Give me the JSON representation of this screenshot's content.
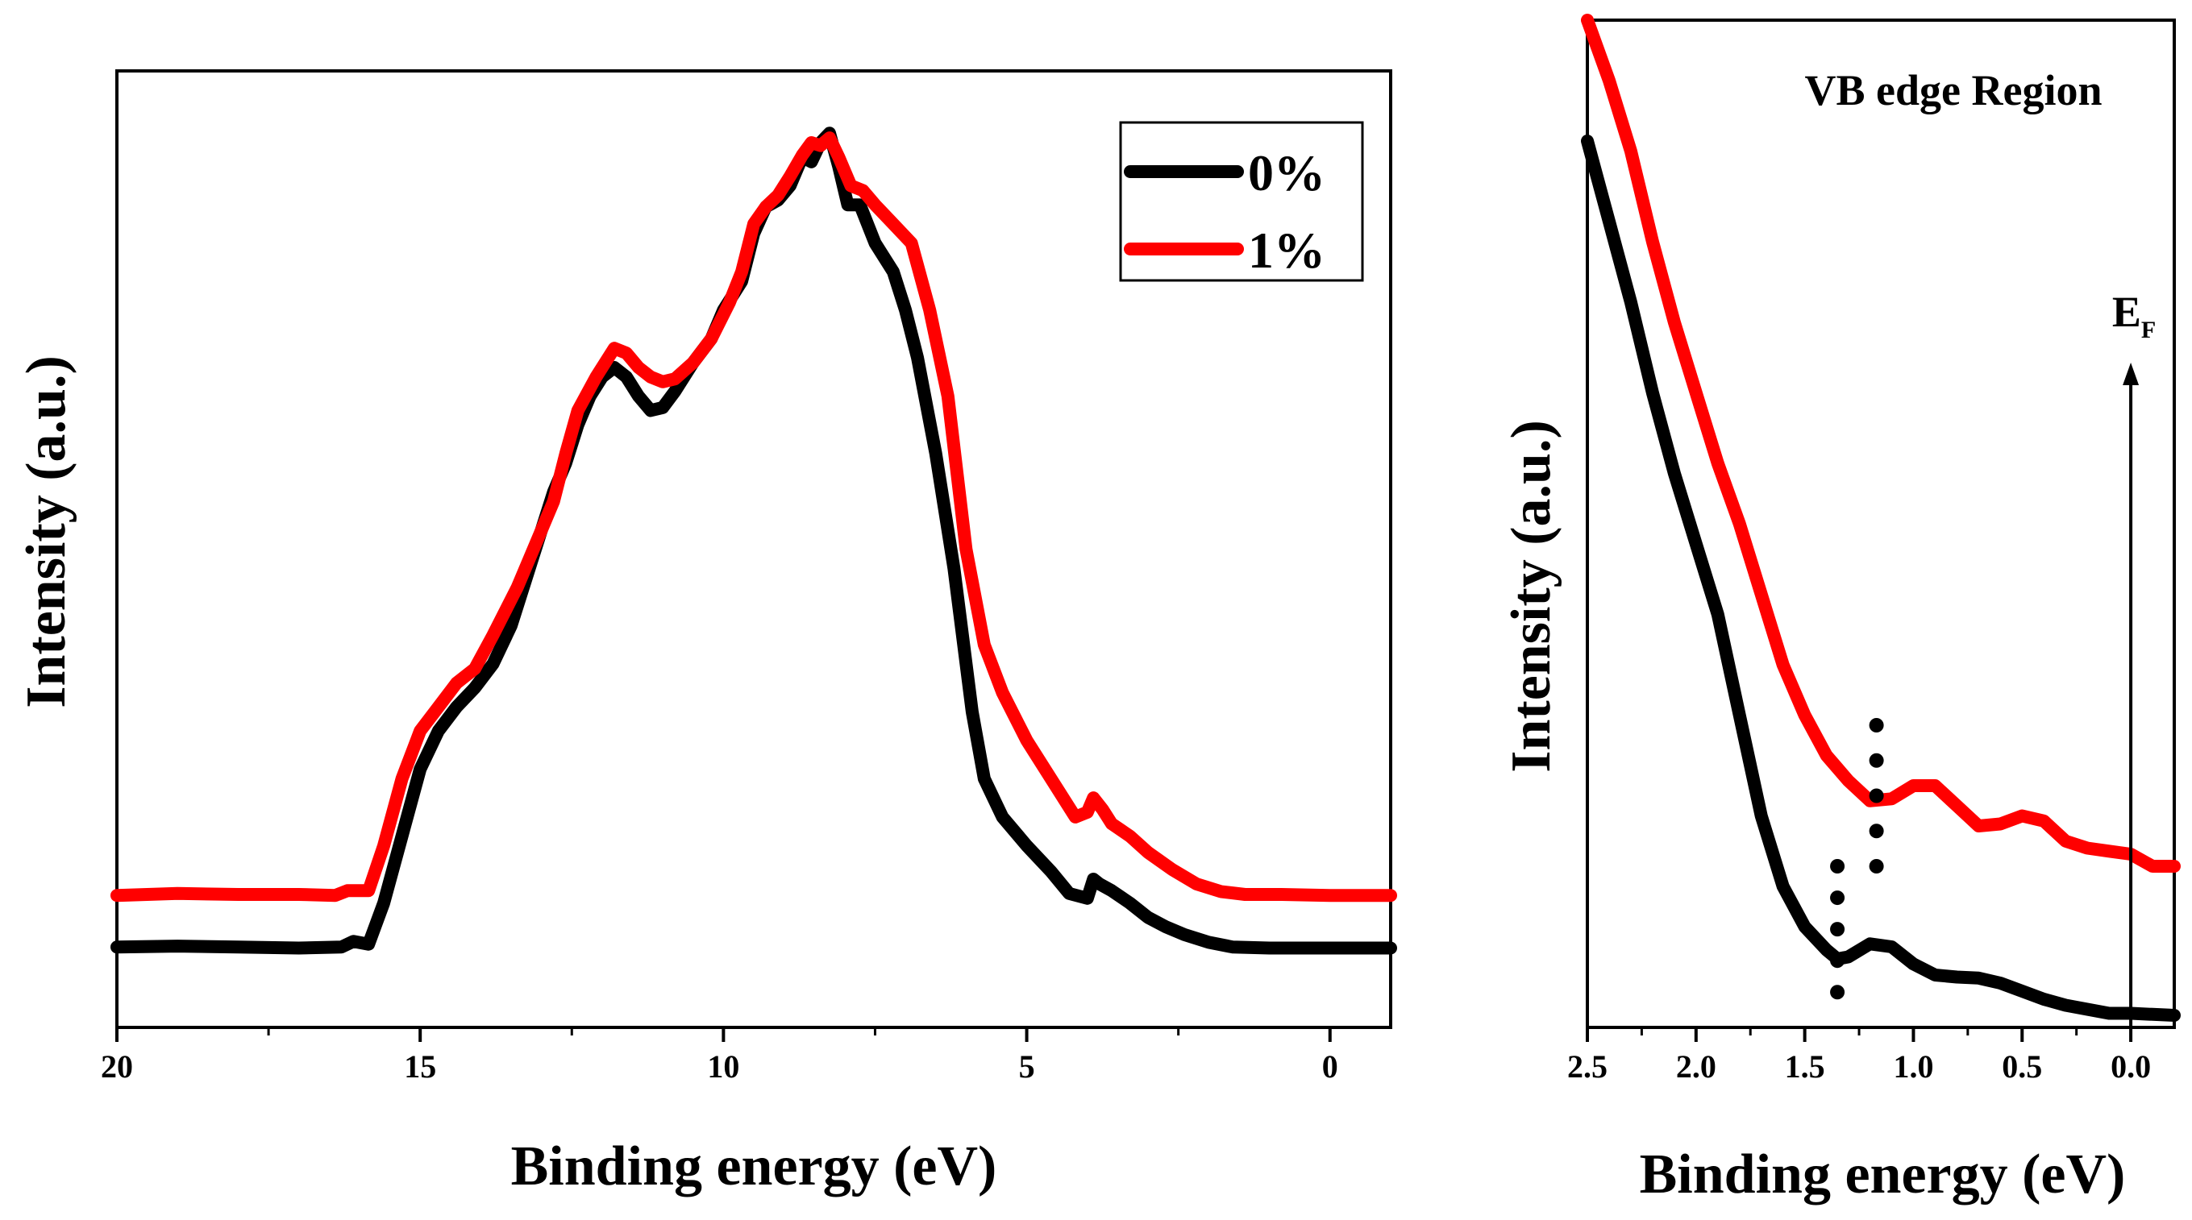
{
  "chart_data": [
    {
      "type": "line",
      "xlabel": "Binding energy (eV)",
      "ylabel": "Intensity (a.u.)",
      "xlim": [
        20,
        -1
      ],
      "x_reversed": true,
      "xticks": [
        "20",
        "15",
        "10",
        "5",
        "0"
      ],
      "xtick_values": [
        20,
        15,
        10,
        5,
        0
      ],
      "yticks": [],
      "ylim": [
        0,
        1
      ],
      "legend": {
        "position": "top-right",
        "entries": [
          "0%",
          "1%"
        ]
      },
      "series": [
        {
          "name": "0%",
          "color": "#000000",
          "points": [
            [
              20,
              0.084
            ],
            [
              19,
              0.085
            ],
            [
              18,
              0.084
            ],
            [
              17,
              0.083
            ],
            [
              16.3,
              0.084
            ],
            [
              16.1,
              0.09
            ],
            [
              15.85,
              0.087
            ],
            [
              15.6,
              0.13
            ],
            [
              15.3,
              0.2
            ],
            [
              15,
              0.27
            ],
            [
              14.7,
              0.31
            ],
            [
              14.4,
              0.335
            ],
            [
              14.1,
              0.355
            ],
            [
              13.8,
              0.38
            ],
            [
              13.5,
              0.42
            ],
            [
              13.2,
              0.48
            ],
            [
              12.8,
              0.56
            ],
            [
              12.6,
              0.59
            ],
            [
              12.4,
              0.63
            ],
            [
              12.2,
              0.66
            ],
            [
              12.0,
              0.68
            ],
            [
              11.8,
              0.69
            ],
            [
              11.6,
              0.68
            ],
            [
              11.4,
              0.66
            ],
            [
              11.2,
              0.645
            ],
            [
              11.0,
              0.648
            ],
            [
              10.8,
              0.665
            ],
            [
              10.5,
              0.695
            ],
            [
              10.2,
              0.72
            ],
            [
              10.0,
              0.75
            ],
            [
              9.7,
              0.78
            ],
            [
              9.5,
              0.83
            ],
            [
              9.3,
              0.858
            ],
            [
              9.1,
              0.865
            ],
            [
              8.9,
              0.88
            ],
            [
              8.7,
              0.91
            ],
            [
              8.55,
              0.905
            ],
            [
              8.4,
              0.925
            ],
            [
              8.25,
              0.935
            ],
            [
              8.1,
              0.9
            ],
            [
              7.95,
              0.86
            ],
            [
              7.75,
              0.86
            ],
            [
              7.5,
              0.82
            ],
            [
              7.2,
              0.79
            ],
            [
              7.0,
              0.75
            ],
            [
              6.8,
              0.7
            ],
            [
              6.5,
              0.6
            ],
            [
              6.2,
              0.48
            ],
            [
              5.9,
              0.33
            ],
            [
              5.7,
              0.26
            ],
            [
              5.4,
              0.22
            ],
            [
              5.0,
              0.19
            ],
            [
              4.6,
              0.163
            ],
            [
              4.3,
              0.14
            ],
            [
              4.0,
              0.135
            ],
            [
              3.9,
              0.155
            ],
            [
              3.8,
              0.15
            ],
            [
              3.6,
              0.143
            ],
            [
              3.3,
              0.13
            ],
            [
              3.0,
              0.115
            ],
            [
              2.7,
              0.105
            ],
            [
              2.4,
              0.097
            ],
            [
              2.0,
              0.089
            ],
            [
              1.6,
              0.084
            ],
            [
              1.0,
              0.083
            ],
            [
              0,
              0.083
            ],
            [
              -1,
              0.083
            ]
          ]
        },
        {
          "name": "1%",
          "color": "#ff0000",
          "points": [
            [
              20,
              0.138
            ],
            [
              19,
              0.14
            ],
            [
              18,
              0.139
            ],
            [
              17,
              0.139
            ],
            [
              16.4,
              0.138
            ],
            [
              16.2,
              0.143
            ],
            [
              15.85,
              0.143
            ],
            [
              15.6,
              0.19
            ],
            [
              15.3,
              0.26
            ],
            [
              15,
              0.31
            ],
            [
              14.7,
              0.335
            ],
            [
              14.4,
              0.36
            ],
            [
              14.1,
              0.375
            ],
            [
              13.8,
              0.41
            ],
            [
              13.4,
              0.46
            ],
            [
              13.0,
              0.52
            ],
            [
              12.8,
              0.55
            ],
            [
              12.6,
              0.6
            ],
            [
              12.4,
              0.645
            ],
            [
              12.1,
              0.68
            ],
            [
              11.9,
              0.7
            ],
            [
              11.8,
              0.71
            ],
            [
              11.6,
              0.705
            ],
            [
              11.4,
              0.69
            ],
            [
              11.2,
              0.68
            ],
            [
              11.0,
              0.675
            ],
            [
              10.8,
              0.678
            ],
            [
              10.5,
              0.695
            ],
            [
              10.2,
              0.72
            ],
            [
              9.9,
              0.758
            ],
            [
              9.7,
              0.79
            ],
            [
              9.5,
              0.84
            ],
            [
              9.3,
              0.858
            ],
            [
              9.1,
              0.87
            ],
            [
              8.9,
              0.89
            ],
            [
              8.7,
              0.912
            ],
            [
              8.55,
              0.925
            ],
            [
              8.4,
              0.922
            ],
            [
              8.25,
              0.93
            ],
            [
              8.1,
              0.91
            ],
            [
              7.9,
              0.88
            ],
            [
              7.7,
              0.875
            ],
            [
              7.5,
              0.86
            ],
            [
              7.2,
              0.84
            ],
            [
              6.9,
              0.82
            ],
            [
              6.6,
              0.75
            ],
            [
              6.3,
              0.66
            ],
            [
              6.0,
              0.5
            ],
            [
              5.7,
              0.4
            ],
            [
              5.4,
              0.35
            ],
            [
              5.0,
              0.3
            ],
            [
              4.6,
              0.26
            ],
            [
              4.2,
              0.22
            ],
            [
              4.0,
              0.225
            ],
            [
              3.9,
              0.24
            ],
            [
              3.75,
              0.228
            ],
            [
              3.6,
              0.213
            ],
            [
              3.3,
              0.2
            ],
            [
              3.0,
              0.183
            ],
            [
              2.6,
              0.165
            ],
            [
              2.2,
              0.15
            ],
            [
              1.8,
              0.142
            ],
            [
              1.4,
              0.139
            ],
            [
              0.8,
              0.139
            ],
            [
              0,
              0.138
            ],
            [
              -1,
              0.138
            ]
          ]
        }
      ]
    },
    {
      "type": "line",
      "title": "VB edge Region",
      "xlabel": "Binding energy (eV)",
      "ylabel": "Intensity (a.u.)",
      "xlim": [
        2.5,
        -0.2
      ],
      "x_reversed": true,
      "xticks": [
        "2.5",
        "2.0",
        "1.5",
        "1.0",
        "0.5",
        "0.0"
      ],
      "xtick_values": [
        2.5,
        2.0,
        1.5,
        1.0,
        0.5,
        0.0
      ],
      "yticks": [],
      "ylim": [
        0,
        1
      ],
      "annotations": {
        "fermi_level": {
          "label": "E",
          "subscript": "F",
          "x": 0.0,
          "arrow": "up"
        },
        "dotted_markers": [
          {
            "x": 1.35,
            "y_from": 0.035,
            "y_to": 0.16
          },
          {
            "x": 1.17,
            "y_from": 0.16,
            "y_to": 0.3
          }
        ]
      },
      "series": [
        {
          "name": "0%",
          "color": "#000000",
          "points": [
            [
              2.5,
              0.88
            ],
            [
              2.4,
              0.8
            ],
            [
              2.3,
              0.72
            ],
            [
              2.2,
              0.63
            ],
            [
              2.1,
              0.55
            ],
            [
              2.0,
              0.48
            ],
            [
              1.9,
              0.41
            ],
            [
              1.8,
              0.31
            ],
            [
              1.7,
              0.21
            ],
            [
              1.6,
              0.14
            ],
            [
              1.5,
              0.1
            ],
            [
              1.4,
              0.077
            ],
            [
              1.35,
              0.068
            ],
            [
              1.3,
              0.07
            ],
            [
              1.2,
              0.083
            ],
            [
              1.1,
              0.08
            ],
            [
              1.0,
              0.063
            ],
            [
              0.9,
              0.052
            ],
            [
              0.8,
              0.05
            ],
            [
              0.7,
              0.049
            ],
            [
              0.6,
              0.044
            ],
            [
              0.5,
              0.036
            ],
            [
              0.4,
              0.028
            ],
            [
              0.3,
              0.022
            ],
            [
              0.2,
              0.018
            ],
            [
              0.1,
              0.014
            ],
            [
              0.0,
              0.014
            ],
            [
              -0.1,
              0.013
            ],
            [
              -0.2,
              0.012
            ]
          ]
        },
        {
          "name": "1%",
          "color": "#ff0000",
          "points": [
            [
              2.5,
              1.0
            ],
            [
              2.4,
              0.94
            ],
            [
              2.3,
              0.87
            ],
            [
              2.2,
              0.78
            ],
            [
              2.1,
              0.7
            ],
            [
              2.0,
              0.63
            ],
            [
              1.9,
              0.56
            ],
            [
              1.8,
              0.5
            ],
            [
              1.7,
              0.43
            ],
            [
              1.6,
              0.36
            ],
            [
              1.5,
              0.31
            ],
            [
              1.4,
              0.27
            ],
            [
              1.3,
              0.245
            ],
            [
              1.2,
              0.225
            ],
            [
              1.1,
              0.227
            ],
            [
              1.0,
              0.24
            ],
            [
              0.9,
              0.24
            ],
            [
              0.8,
              0.22
            ],
            [
              0.7,
              0.2
            ],
            [
              0.6,
              0.202
            ],
            [
              0.5,
              0.21
            ],
            [
              0.4,
              0.205
            ],
            [
              0.3,
              0.185
            ],
            [
              0.2,
              0.178
            ],
            [
              0.1,
              0.175
            ],
            [
              0.0,
              0.172
            ],
            [
              -0.1,
              0.16
            ],
            [
              -0.2,
              0.16
            ]
          ]
        }
      ]
    }
  ]
}
